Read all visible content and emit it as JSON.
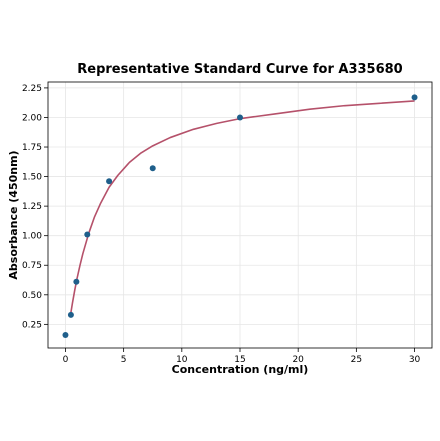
{
  "chart_data": {
    "type": "scatter",
    "title": "Representative Standard Curve for A335680",
    "xlabel": "Concentration (ng/ml)",
    "ylabel": "Absorbance (450nm)",
    "xlim": [
      -1.5,
      31.5
    ],
    "ylim": [
      0.05,
      2.3
    ],
    "xticks": [
      0,
      5,
      10,
      15,
      20,
      25,
      30
    ],
    "yticks": [
      0.25,
      0.5,
      0.75,
      1.0,
      1.25,
      1.5,
      1.75,
      2.0,
      2.25
    ],
    "xtick_labels": [
      "0",
      "5",
      "10",
      "15",
      "20",
      "25",
      "30"
    ],
    "ytick_labels": [
      "0.25",
      "0.50",
      "0.75",
      "1.00",
      "1.25",
      "1.50",
      "1.75",
      "2.00",
      "2.25"
    ],
    "grid": true,
    "series": [
      {
        "kind": "points",
        "x": [
          0,
          0.469,
          0.938,
          1.875,
          3.75,
          7.5,
          15,
          30
        ],
        "y": [
          0.16,
          0.33,
          0.61,
          1.01,
          1.46,
          1.57,
          2.0,
          2.17
        ]
      },
      {
        "kind": "fitted-curve",
        "x": [
          0.47,
          0.6,
          0.8,
          1.0,
          1.25,
          1.5,
          2.0,
          2.5,
          3.0,
          3.75,
          4.5,
          5.5,
          6.5,
          7.5,
          9.0,
          11.0,
          13.0,
          15.0,
          18.0,
          21.0,
          24.0,
          27.0,
          30.0
        ],
        "y": [
          0.35,
          0.43,
          0.54,
          0.64,
          0.75,
          0.85,
          1.02,
          1.16,
          1.27,
          1.41,
          1.51,
          1.62,
          1.7,
          1.76,
          1.83,
          1.9,
          1.95,
          1.99,
          2.03,
          2.07,
          2.1,
          2.12,
          2.14
        ]
      }
    ],
    "colors": {
      "points": "#1f5f8b",
      "curve": "#b5516a",
      "grid": "#e6e6e6",
      "axis": "#000000"
    }
  }
}
